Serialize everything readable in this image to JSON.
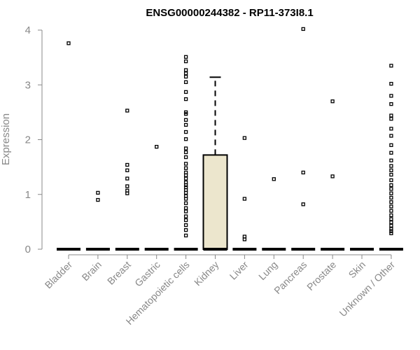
{
  "chart_data": {
    "type": "box",
    "title": "ENSG00000244382 - RP11-373I8.1",
    "xlabel": "",
    "ylabel": "Expression",
    "ylim": [
      0,
      4
    ],
    "yticks": [
      0,
      1,
      2,
      3,
      4
    ],
    "categories": [
      "Bladder",
      "Brain",
      "Breast",
      "Gastric",
      "Hematopoietic cells",
      "Kidney",
      "Liver",
      "Lung",
      "Pancreas",
      "Prostate",
      "Skin",
      "Unknown / Other"
    ],
    "box_fill": "#ece6cd",
    "boxes": [
      {
        "category": "Bladder",
        "q1": 0,
        "median": 0,
        "q3": 0,
        "whisker_low": 0,
        "whisker_high": 0,
        "outliers": [
          3.76
        ]
      },
      {
        "category": "Brain",
        "q1": 0,
        "median": 0,
        "q3": 0,
        "whisker_low": 0,
        "whisker_high": 0,
        "outliers": [
          1.03,
          0.9
        ]
      },
      {
        "category": "Breast",
        "q1": 0,
        "median": 0,
        "q3": 0,
        "whisker_low": 0,
        "whisker_high": 0,
        "outliers": [
          2.53,
          1.54,
          1.44,
          1.29,
          1.15,
          1.07,
          1.02
        ]
      },
      {
        "category": "Gastric",
        "q1": 0,
        "median": 0,
        "q3": 0,
        "whisker_low": 0,
        "whisker_high": 0,
        "outliers": [
          1.87
        ]
      },
      {
        "category": "Hematopoietic cells",
        "q1": 0,
        "median": 0,
        "q3": 0,
        "whisker_low": 0,
        "whisker_high": 0,
        "outliers": [
          3.51,
          3.43,
          3.27,
          3.21,
          3.15,
          3.05,
          2.87,
          2.74,
          2.5,
          2.47,
          2.36,
          2.27,
          2.14,
          2.01,
          1.84,
          1.77,
          1.68,
          1.56,
          1.48,
          1.4,
          1.35,
          1.29,
          1.22,
          1.17,
          1.13,
          1.08,
          1.03,
          0.97,
          0.92,
          0.84,
          0.75,
          0.69,
          0.6,
          0.53,
          0.44,
          0.35,
          0.25
        ]
      },
      {
        "category": "Kidney",
        "q1": 0,
        "median": 0,
        "q3": 1.72,
        "whisker_low": 0,
        "whisker_high": 3.14,
        "outliers": []
      },
      {
        "category": "Liver",
        "q1": 0,
        "median": 0,
        "q3": 0,
        "whisker_low": 0,
        "whisker_high": 0,
        "outliers": [
          2.03,
          0.92,
          0.23,
          0.18
        ]
      },
      {
        "category": "Lung",
        "q1": 0,
        "median": 0,
        "q3": 0,
        "whisker_low": 0,
        "whisker_high": 0,
        "outliers": [
          1.28
        ]
      },
      {
        "category": "Pancreas",
        "q1": 0,
        "median": 0,
        "q3": 0,
        "whisker_low": 0,
        "whisker_high": 0,
        "outliers": [
          4.02,
          1.4,
          0.82
        ]
      },
      {
        "category": "Prostate",
        "q1": 0,
        "median": 0,
        "q3": 0,
        "whisker_low": 0,
        "whisker_high": 0,
        "outliers": [
          2.7,
          1.33
        ]
      },
      {
        "category": "Skin",
        "q1": 0,
        "median": 0,
        "q3": 0,
        "whisker_low": 0,
        "whisker_high": 0,
        "outliers": []
      },
      {
        "category": "Unknown / Other",
        "q1": 0,
        "median": 0,
        "q3": 0,
        "whisker_low": 0,
        "whisker_high": 0,
        "outliers": [
          3.35,
          3.02,
          2.8,
          2.65,
          2.44,
          2.38,
          2.2,
          2.07,
          1.9,
          1.76,
          1.62,
          1.52,
          1.44,
          1.36,
          1.26,
          1.17,
          1.1,
          1.02,
          0.94,
          0.86,
          0.78,
          0.7,
          0.62,
          0.55,
          0.49,
          0.43,
          0.37,
          0.33,
          0.29
        ]
      }
    ],
    "grid": false,
    "legend": "none"
  }
}
